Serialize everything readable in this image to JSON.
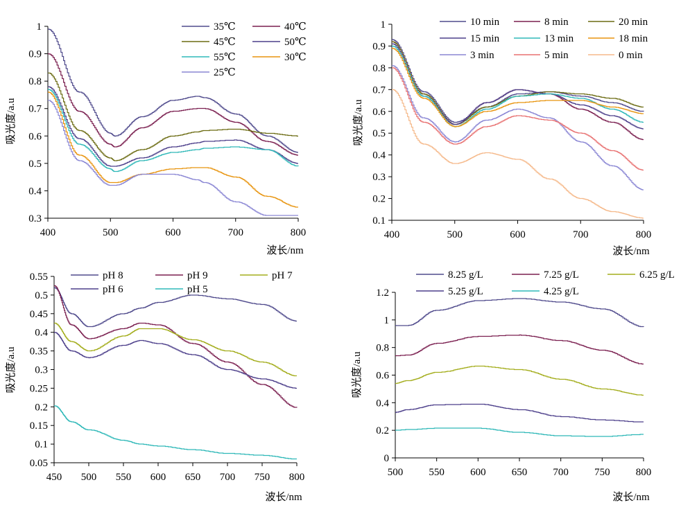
{
  "chart_data": [
    {
      "type": "line",
      "xlabel": "波长/nm",
      "ylabel": "吸光度/a.u",
      "xlim": [
        400,
        800
      ],
      "ylim": [
        0.3,
        1.0
      ],
      "xticks": [
        400,
        500,
        600,
        700,
        800
      ],
      "yticks": [
        0.3,
        0.4,
        0.5,
        0.6,
        0.7,
        0.8,
        0.9,
        1
      ],
      "grid": false,
      "legend": "top-right",
      "x": [
        400,
        450,
        500,
        507,
        550,
        600,
        640,
        650,
        700,
        750,
        800
      ],
      "series": [
        {
          "name": "35℃",
          "color": "#4F4A8C",
          "values": [
            0.99,
            0.76,
            0.61,
            0.6,
            0.67,
            0.73,
            0.745,
            0.74,
            0.68,
            0.6,
            0.54
          ]
        },
        {
          "name": "40℃",
          "color": "#7A1F4F",
          "values": [
            0.9,
            0.69,
            0.57,
            0.56,
            0.63,
            0.69,
            0.7,
            0.7,
            0.65,
            0.58,
            0.53
          ]
        },
        {
          "name": "45℃",
          "color": "#6B6B12",
          "values": [
            0.83,
            0.62,
            0.52,
            0.51,
            0.55,
            0.6,
            0.615,
            0.62,
            0.625,
            0.61,
            0.6
          ]
        },
        {
          "name": "50℃",
          "color": "#4C3F8A",
          "values": [
            0.78,
            0.59,
            0.49,
            0.49,
            0.52,
            0.56,
            0.575,
            0.58,
            0.585,
            0.55,
            0.5
          ]
        },
        {
          "name": "55℃",
          "color": "#2EB8B8",
          "values": [
            0.77,
            0.57,
            0.48,
            0.47,
            0.51,
            0.54,
            0.55,
            0.555,
            0.56,
            0.55,
            0.49
          ]
        },
        {
          "name": "30℃",
          "color": "#E8940F",
          "values": [
            0.76,
            0.53,
            0.43,
            0.43,
            0.46,
            0.48,
            0.485,
            0.485,
            0.45,
            0.38,
            0.34
          ]
        },
        {
          "name": "25℃",
          "color": "#8A86D4",
          "values": [
            0.73,
            0.51,
            0.42,
            0.42,
            0.46,
            0.46,
            0.44,
            0.43,
            0.36,
            0.31,
            0.31
          ]
        }
      ]
    },
    {
      "type": "line",
      "xlabel": "波长/nm",
      "ylabel": "吸光度/a.u",
      "xlim": [
        400,
        800
      ],
      "ylim": [
        0.1,
        1.0
      ],
      "xticks": [
        400,
        500,
        600,
        700,
        800
      ],
      "yticks": [
        0.1,
        0.2,
        0.3,
        0.4,
        0.5,
        0.6,
        0.7,
        0.8,
        0.9,
        1
      ],
      "grid": false,
      "legend": "top-right",
      "x": [
        400,
        450,
        500,
        550,
        600,
        650,
        700,
        750,
        800
      ],
      "series": [
        {
          "name": "10 min",
          "color": "#4F4A8C",
          "values": [
            0.93,
            0.69,
            0.55,
            0.62,
            0.68,
            0.69,
            0.67,
            0.64,
            0.6
          ]
        },
        {
          "name": "8 min",
          "color": "#7A1F4F",
          "values": [
            0.92,
            0.68,
            0.54,
            0.64,
            0.7,
            0.68,
            0.61,
            0.55,
            0.47
          ]
        },
        {
          "name": "20 min",
          "color": "#6B6B12",
          "values": [
            0.92,
            0.68,
            0.54,
            0.62,
            0.67,
            0.69,
            0.68,
            0.66,
            0.62
          ]
        },
        {
          "name": "15 min",
          "color": "#4C3F8A",
          "values": [
            0.91,
            0.67,
            0.54,
            0.64,
            0.7,
            0.68,
            0.63,
            0.58,
            0.52
          ]
        },
        {
          "name": "13 min",
          "color": "#2EB8B8",
          "values": [
            0.9,
            0.67,
            0.53,
            0.61,
            0.67,
            0.68,
            0.66,
            0.61,
            0.55
          ]
        },
        {
          "name": "18 min",
          "color": "#E8940F",
          "values": [
            0.89,
            0.66,
            0.53,
            0.6,
            0.64,
            0.65,
            0.65,
            0.62,
            0.59
          ]
        },
        {
          "name": "3 min",
          "color": "#8A86D4",
          "values": [
            0.81,
            0.57,
            0.46,
            0.56,
            0.61,
            0.57,
            0.46,
            0.35,
            0.24
          ]
        },
        {
          "name": "5 min",
          "color": "#E87070",
          "values": [
            0.8,
            0.55,
            0.45,
            0.53,
            0.58,
            0.56,
            0.5,
            0.42,
            0.33
          ]
        },
        {
          "name": "0 min",
          "color": "#F5B98A",
          "values": [
            0.7,
            0.45,
            0.36,
            0.41,
            0.38,
            0.29,
            0.2,
            0.14,
            0.11
          ]
        }
      ]
    },
    {
      "type": "line",
      "xlabel": "波长/nm",
      "ylabel": "吸光度/a.u",
      "xlim": [
        450,
        800
      ],
      "ylim": [
        0.05,
        0.55
      ],
      "xticks": [
        450,
        500,
        550,
        600,
        650,
        700,
        750,
        800
      ],
      "yticks": [
        0.05,
        0.1,
        0.15,
        0.2,
        0.25,
        0.3,
        0.35,
        0.4,
        0.45,
        0.5,
        0.55
      ],
      "grid": false,
      "legend": "top",
      "x": [
        450,
        475,
        500,
        550,
        575,
        600,
        650,
        700,
        750,
        800
      ],
      "series": [
        {
          "name": "pH 8",
          "color": "#4F4A8C",
          "values": [
            0.52,
            0.45,
            0.415,
            0.45,
            0.465,
            0.48,
            0.5,
            0.49,
            0.475,
            0.43
          ]
        },
        {
          "name": "pH 9",
          "color": "#7A1F4F",
          "values": [
            0.525,
            0.42,
            0.383,
            0.41,
            0.425,
            0.42,
            0.37,
            0.32,
            0.26,
            0.198
          ]
        },
        {
          "name": "pH 7",
          "color": "#A3AD1C",
          "values": [
            0.425,
            0.375,
            0.35,
            0.39,
            0.41,
            0.41,
            0.38,
            0.35,
            0.32,
            0.283
          ]
        },
        {
          "name": "pH 6",
          "color": "#4C3F8A",
          "values": [
            0.4,
            0.35,
            0.332,
            0.365,
            0.378,
            0.37,
            0.34,
            0.3,
            0.275,
            0.25
          ]
        },
        {
          "name": "pH 5",
          "color": "#2EB8B8",
          "values": [
            0.203,
            0.16,
            0.138,
            0.11,
            0.1,
            0.095,
            0.085,
            0.075,
            0.07,
            0.06
          ]
        }
      ]
    },
    {
      "type": "line",
      "xlabel": "波长/nm",
      "ylabel": "吸光度/a.u",
      "xlim": [
        500,
        800
      ],
      "ylim": [
        0,
        1.2
      ],
      "xticks": [
        500,
        550,
        600,
        650,
        700,
        750,
        800
      ],
      "yticks": [
        0,
        0.2,
        0.4,
        0.6,
        0.8,
        1,
        1.2
      ],
      "grid": false,
      "legend": "top",
      "x": [
        500,
        515,
        550,
        600,
        650,
        700,
        750,
        800
      ],
      "series": [
        {
          "name": "8.25 g/L",
          "color": "#4F4A8C",
          "values": [
            0.96,
            0.96,
            1.07,
            1.14,
            1.155,
            1.13,
            1.08,
            0.95
          ]
        },
        {
          "name": "7.25 g/L",
          "color": "#7A1F4F",
          "values": [
            0.74,
            0.745,
            0.83,
            0.88,
            0.89,
            0.85,
            0.78,
            0.68
          ]
        },
        {
          "name": "6.25 g/L",
          "color": "#A3AD1C",
          "values": [
            0.54,
            0.56,
            0.62,
            0.665,
            0.64,
            0.57,
            0.5,
            0.455
          ]
        },
        {
          "name": "5.25 g/L",
          "color": "#4C3F8A",
          "values": [
            0.33,
            0.35,
            0.385,
            0.39,
            0.35,
            0.3,
            0.275,
            0.26
          ]
        },
        {
          "name": "4.25 g/L",
          "color": "#2EB8B8",
          "values": [
            0.2,
            0.205,
            0.215,
            0.215,
            0.185,
            0.16,
            0.155,
            0.17
          ]
        }
      ]
    }
  ]
}
